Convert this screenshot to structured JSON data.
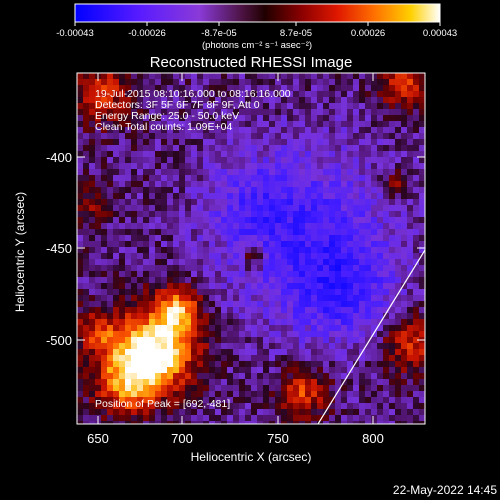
{
  "colorbar": {
    "tick_labels": [
      "-0.00043",
      "-0.00026",
      "-8.7e-05",
      "8.7e-05",
      "0.00026",
      "0.00043"
    ],
    "units_label": "(photons cm⁻² s⁻¹ asec⁻²)",
    "colors": [
      "#0000ff",
      "#4020ff",
      "#8040e0",
      "#5a1a5a",
      "#300000",
      "#900000",
      "#ff2000",
      "#ff8000",
      "#ffd000",
      "#ffffff"
    ]
  },
  "image": {
    "title": "Reconstructed RHESSI Image",
    "info_lines": [
      "19-Jul-2015 08:10:16.000 to 08:16:16.000",
      "Detectors: 3F 5F 6F 7F 8F 9F, Att 0",
      "Energy Range: 25.0 - 50.0 keV",
      "Clean     Total counts: 1.09E+04"
    ],
    "peak_label": "Position of Peak = [692,-481]"
  },
  "axes": {
    "xlabel": "Heliocentric X (arcsec)",
    "ylabel": "Heliocentric Y (arcsec)",
    "xticks": [
      "650",
      "700",
      "750",
      "800"
    ],
    "yticks": [
      "-400",
      "-450",
      "-500"
    ]
  },
  "footer": {
    "date": "22-May-2022 14:45"
  }
}
